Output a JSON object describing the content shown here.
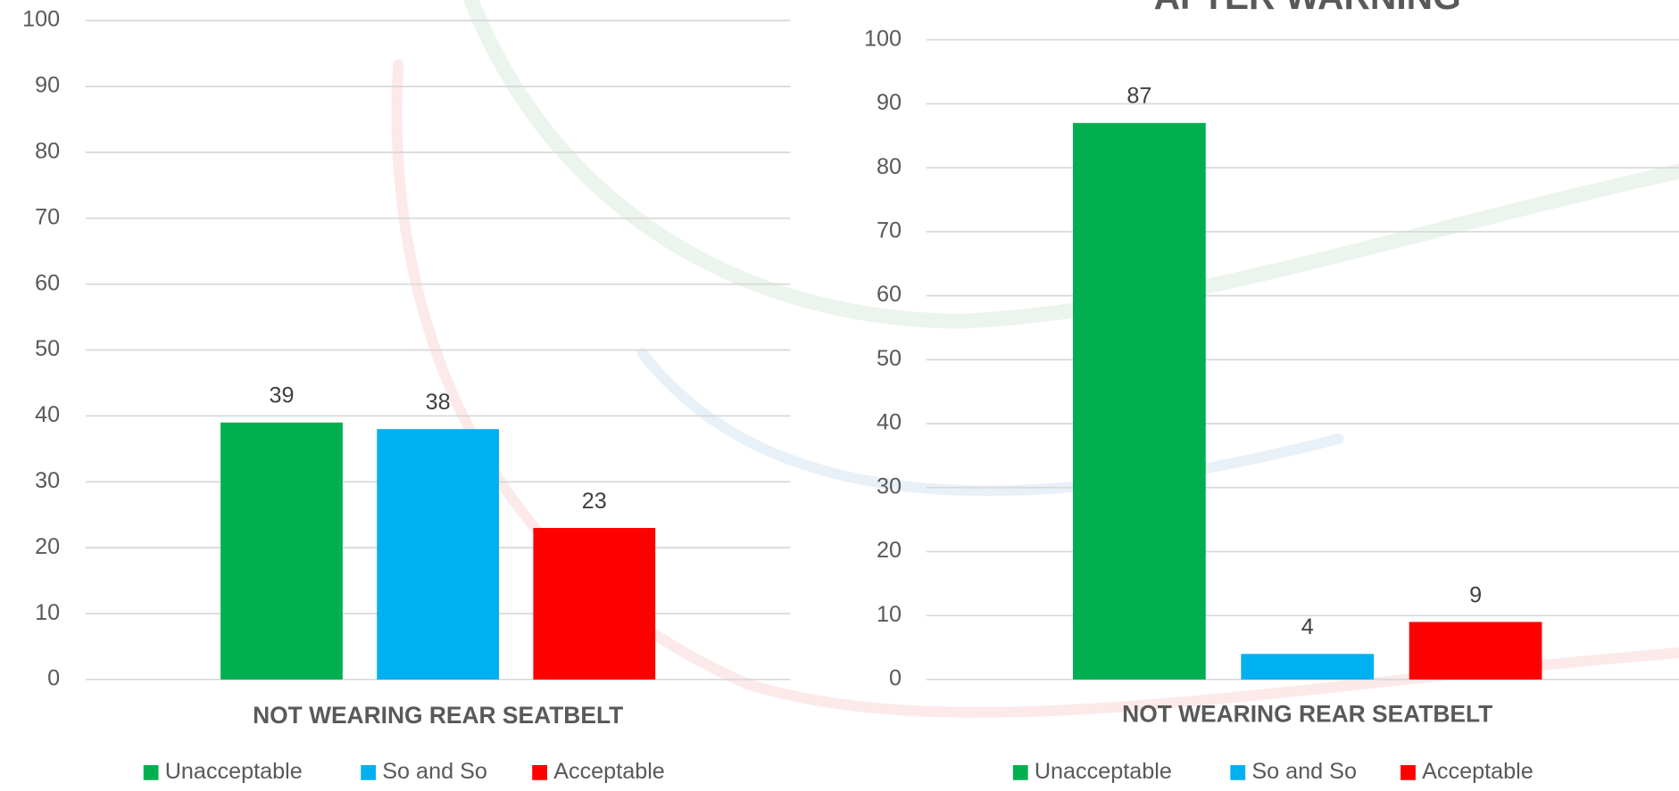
{
  "chart_data": [
    {
      "type": "bar",
      "categories": [
        "NOT WEARING REAR SEATBELT"
      ],
      "series": [
        {
          "name": "Unacceptable",
          "color": "#00b050",
          "values": [
            39
          ]
        },
        {
          "name": "So and So",
          "color": "#00b0f0",
          "values": [
            38
          ]
        },
        {
          "name": "Acceptable",
          "color": "#ff0000",
          "values": [
            23
          ]
        }
      ],
      "ylim": [
        0,
        100
      ],
      "yticks": [
        0,
        10,
        20,
        30,
        40,
        50,
        60,
        70,
        80,
        90,
        100
      ],
      "grid": true,
      "legend": "bottom"
    },
    {
      "type": "bar",
      "title": "AFTER WARNING",
      "categories": [
        "NOT WEARING REAR SEATBELT"
      ],
      "series": [
        {
          "name": "Unacceptable",
          "color": "#00b050",
          "values": [
            87
          ]
        },
        {
          "name": "So and So",
          "color": "#00b0f0",
          "values": [
            4
          ]
        },
        {
          "name": "Acceptable",
          "color": "#ff0000",
          "values": [
            9
          ]
        }
      ],
      "ylim": [
        0,
        100
      ],
      "yticks": [
        0,
        10,
        20,
        30,
        40,
        50,
        60,
        70,
        80,
        90,
        100
      ],
      "grid": true,
      "legend": "bottom"
    }
  ]
}
